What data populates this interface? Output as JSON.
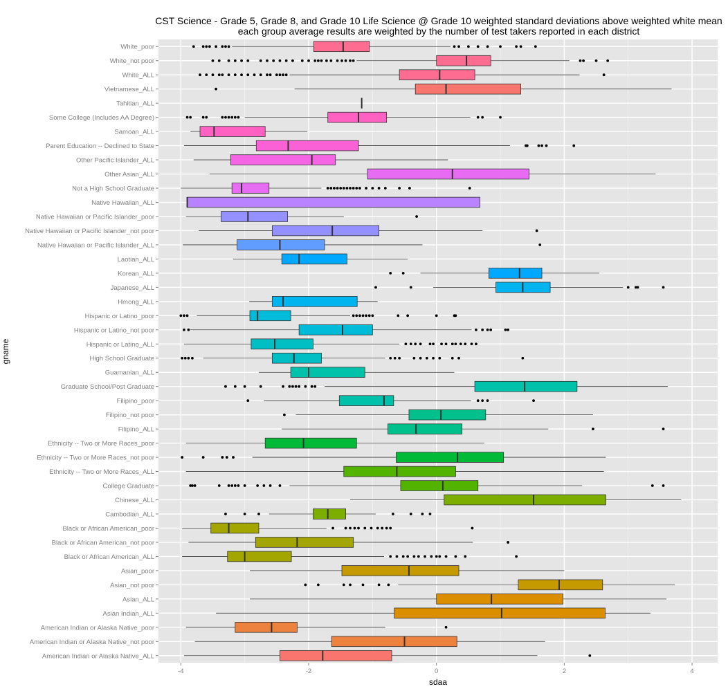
{
  "chart_data": {
    "type": "boxplot",
    "title": "CST Science - Grade 5, Grade 8, and Grade 10 Life Science @ Grade 10 weighted standard deviations above weighted white mean",
    "subtitle": "each group average results are weighted by the number of test takers reported in each district",
    "xlabel": "sdaa",
    "ylabel": "gname",
    "xlim": [
      -4.35,
      4.4
    ],
    "x_ticks": [
      -4,
      -2,
      0,
      2,
      4
    ],
    "x_tick_labels": [
      "-4",
      "-2",
      "0",
      "2",
      "4"
    ],
    "grid": true,
    "legend": "none",
    "categories": [
      "White_poor",
      "White_not poor",
      "White_ALL",
      "Vietnamese_ALL",
      "Tahitian_ALL",
      "Some College (Includes AA Degree)",
      "Samoan_ALL",
      "Parent Education -- Declined to State",
      "Other Pacific Islander_ALL",
      "Other Asian_ALL",
      "Not a High School Graduate",
      "Native Hawaiian_ALL",
      "Native Hawaiian or Pacific Islander_poor",
      "Native Hawaiian or Pacific Islander_not poor",
      "Native Hawaiian or Pacific Islander_ALL",
      "Laotian_ALL",
      "Korean_ALL",
      "Japanese_ALL",
      "Hmong_ALL",
      "Hispanic or Latino_poor",
      "Hispanic or Latino_not poor",
      "Hispanic or Latino_ALL",
      "High School Graduate",
      "Guamanian_ALL",
      "Graduate School/Post Graduate",
      "Filipino_poor",
      "Filipino_not poor",
      "Filipino_ALL",
      "Ethnicity -- Two or More Races_poor",
      "Ethnicity -- Two or More Races_not poor",
      "Ethnicity -- Two or More Races_ALL",
      "College Graduate",
      "Chinese_ALL",
      "Cambodian_ALL",
      "Black or African American_poor",
      "Black or African American_not poor",
      "Black or African American_ALL",
      "Asian_poor",
      "Asian_not poor",
      "Asian_ALL",
      "Asian Indian_ALL",
      "American Indian or Alaska Native_poor",
      "American Indian or Alaska Native_not poor",
      "American Indian or Alaska Native_ALL"
    ],
    "boxes": [
      {
        "fill": "#FF6C91",
        "whisker_low": -3.2,
        "q1": -1.92,
        "median": -1.46,
        "q3": -1.05,
        "whisker_high": 0.22,
        "outliers": [
          -3.8,
          -3.65,
          -3.6,
          -3.55,
          -3.45,
          -3.35,
          -3.3,
          -3.25,
          0.28,
          0.35,
          0.5,
          0.65,
          0.8,
          1.0,
          1.25,
          1.32,
          1.55
        ]
      },
      {
        "fill": "#FF6C91",
        "whisker_low": -1.25,
        "q1": 0.0,
        "median": 0.47,
        "q3": 0.85,
        "whisker_high": 2.08,
        "outliers": [
          -3.5,
          -3.4,
          -3.25,
          -3.15,
          -3.05,
          -2.95,
          -2.75,
          -2.65,
          -2.55,
          -2.45,
          -2.35,
          -2.25,
          -2.1,
          -2.0,
          -1.9,
          -1.85,
          -1.8,
          -1.72,
          -1.65,
          -1.55,
          -1.48,
          -1.42,
          -1.35,
          -1.3,
          2.25,
          2.3,
          2.5,
          2.68
        ]
      },
      {
        "fill": "#FF6C91",
        "whisker_low": -2.3,
        "q1": -0.58,
        "median": 0.05,
        "q3": 0.6,
        "whisker_high": 2.24,
        "outliers": [
          -3.7,
          -3.6,
          -3.5,
          -3.4,
          -3.35,
          -3.25,
          -3.15,
          -3.05,
          -2.95,
          -2.85,
          -2.75,
          -2.65,
          -2.6,
          -2.5,
          -2.45,
          -2.4,
          -2.35,
          2.62
        ]
      },
      {
        "fill": "#F8766D",
        "whisker_low": -2.22,
        "q1": -0.33,
        "median": 0.15,
        "q3": 1.32,
        "whisker_high": 3.68,
        "outliers": [
          -3.45
        ]
      },
      {
        "fill": "#F8766D",
        "whisker_low": -1.17,
        "q1": -1.17,
        "median": -1.17,
        "q3": -1.17,
        "whisker_high": -1.17,
        "outliers": []
      },
      {
        "fill": "#FF61C3",
        "whisker_low": -3.0,
        "q1": -1.7,
        "median": -1.22,
        "q3": -0.78,
        "whisker_high": 0.53,
        "outliers": [
          -3.9,
          -3.85,
          -3.65,
          -3.6,
          -3.35,
          -3.3,
          -3.25,
          -3.2,
          -3.15,
          -3.1,
          0.65,
          0.72,
          1.0
        ]
      },
      {
        "fill": "#FF61C3",
        "whisker_low": -3.85,
        "q1": -3.7,
        "median": -3.48,
        "q3": -2.68,
        "whisker_high": -2.02,
        "outliers": []
      },
      {
        "fill": "#FB61D7",
        "whisker_low": -3.95,
        "q1": -2.82,
        "median": -2.32,
        "q3": -1.22,
        "whisker_high": 1.15,
        "outliers": [
          1.4,
          1.42,
          1.6,
          1.65,
          1.72,
          2.15
        ]
      },
      {
        "fill": "#F564E3",
        "whisker_low": -3.8,
        "q1": -3.22,
        "median": -1.95,
        "q3": -1.58,
        "whisker_high": 0.18,
        "outliers": []
      },
      {
        "fill": "#E76BF3",
        "whisker_low": -3.55,
        "q1": -1.08,
        "median": 0.25,
        "q3": 1.45,
        "whisker_high": 3.43,
        "outliers": []
      },
      {
        "fill": "#E76BF3",
        "whisker_low": -4.0,
        "q1": -3.2,
        "median": -3.05,
        "q3": -2.62,
        "whisker_high": -1.8,
        "outliers": [
          -1.7,
          -1.65,
          -1.6,
          -1.55,
          -1.5,
          -1.45,
          -1.4,
          -1.35,
          -1.3,
          -1.25,
          -1.2,
          -1.1,
          -1.0,
          -0.9,
          -0.8,
          -0.58,
          -0.42,
          0.52
        ]
      },
      {
        "fill": "#B983FF",
        "whisker_low": -3.9,
        "q1": -3.9,
        "median": -3.9,
        "q3": 0.68,
        "whisker_high": 0.68,
        "outliers": []
      },
      {
        "fill": "#9590FF",
        "whisker_low": -3.92,
        "q1": -3.37,
        "median": -2.95,
        "q3": -2.33,
        "whisker_high": -1.45,
        "outliers": [
          -0.31
        ]
      },
      {
        "fill": "#9590FF",
        "whisker_low": -3.72,
        "q1": -2.57,
        "median": -1.63,
        "q3": -0.9,
        "whisker_high": 0.72,
        "outliers": [
          1.57
        ]
      },
      {
        "fill": "#619CFF",
        "whisker_low": -3.97,
        "q1": -3.12,
        "median": -2.45,
        "q3": -1.75,
        "whisker_high": -0.22,
        "outliers": [
          1.62
        ]
      },
      {
        "fill": "#00A9FF",
        "whisker_low": -3.18,
        "q1": -2.42,
        "median": -2.15,
        "q3": -1.4,
        "whisker_high": -0.45,
        "outliers": []
      },
      {
        "fill": "#00A9FF",
        "whisker_low": -0.25,
        "q1": 0.82,
        "median": 1.3,
        "q3": 1.65,
        "whisker_high": 2.55,
        "outliers": [
          -0.72,
          -0.52
        ]
      },
      {
        "fill": "#00B4F0",
        "whisker_low": -0.05,
        "q1": 0.93,
        "median": 1.35,
        "q3": 1.78,
        "whisker_high": 2.92,
        "outliers": [
          -0.95,
          -0.4,
          3.0,
          3.12,
          3.15,
          3.55
        ]
      },
      {
        "fill": "#00B4F0",
        "whisker_low": -2.93,
        "q1": -2.57,
        "median": -2.4,
        "q3": -1.24,
        "whisker_high": -0.92,
        "outliers": []
      },
      {
        "fill": "#00BCD8",
        "whisker_low": -3.75,
        "q1": -2.92,
        "median": -2.8,
        "q3": -2.28,
        "whisker_high": -1.35,
        "outliers": [
          -4.0,
          -3.95,
          -3.9,
          -1.3,
          -1.25,
          -1.2,
          -1.15,
          -1.1,
          -1.05,
          -1.0,
          -0.6,
          -0.45,
          0.0,
          0.28,
          0.3
        ]
      },
      {
        "fill": "#00BCD8",
        "whisker_low": -3.85,
        "q1": -2.15,
        "median": -1.47,
        "q3": -1.0,
        "whisker_high": 0.55,
        "outliers": [
          -3.95,
          -3.88,
          0.62,
          0.72,
          0.8,
          0.85,
          1.08,
          1.12
        ]
      },
      {
        "fill": "#00BFC4",
        "whisker_low": -3.95,
        "q1": -2.9,
        "median": -2.53,
        "q3": -1.93,
        "whisker_high": -0.58,
        "outliers": [
          -0.48,
          -0.4,
          -0.33,
          -0.25,
          -0.1,
          -0.05,
          0.08,
          0.15,
          0.25,
          0.3,
          0.38,
          0.45,
          0.55,
          0.62
        ]
      },
      {
        "fill": "#00BFC4",
        "whisker_low": -3.65,
        "q1": -2.57,
        "median": -2.23,
        "q3": -1.8,
        "whisker_high": -0.8,
        "outliers": [
          -3.98,
          -3.93,
          -3.88,
          -3.82,
          -0.72,
          -0.65,
          -0.58,
          -0.35,
          -0.25,
          -0.15,
          -0.05,
          0.05,
          0.25,
          0.35,
          1.35
        ]
      },
      {
        "fill": "#00C1AA",
        "whisker_low": -2.78,
        "q1": -2.28,
        "median": -2.0,
        "q3": -1.12,
        "whisker_high": 0.28,
        "outliers": []
      },
      {
        "fill": "#00C1AA",
        "whisker_low": -1.75,
        "q1": 0.6,
        "median": 1.38,
        "q3": 2.2,
        "whisker_high": 3.62,
        "outliers": [
          -3.3,
          -3.15,
          -3.0,
          -2.75,
          -2.4,
          -2.3,
          -2.25,
          -2.2,
          -2.15,
          -2.05,
          -1.95,
          -1.9
        ]
      },
      {
        "fill": "#00C1AA",
        "whisker_low": -2.7,
        "q1": -1.52,
        "median": -0.82,
        "q3": -0.67,
        "whisker_high": 0.54,
        "outliers": [
          -2.95,
          0.65,
          0.72,
          0.8,
          1.52
        ]
      },
      {
        "fill": "#00C08B",
        "whisker_low": -2.2,
        "q1": -0.43,
        "median": 0.07,
        "q3": 0.77,
        "whisker_high": 2.45,
        "outliers": [
          -2.38
        ]
      },
      {
        "fill": "#00C08B",
        "whisker_low": -2.42,
        "q1": -0.76,
        "median": -0.32,
        "q3": 0.4,
        "whisker_high": 1.75,
        "outliers": [
          2.45,
          3.55
        ]
      },
      {
        "fill": "#00BA38",
        "whisker_low": -3.92,
        "q1": -2.68,
        "median": -2.08,
        "q3": -1.25,
        "whisker_high": 0.75,
        "outliers": []
      },
      {
        "fill": "#00BA38",
        "whisker_low": -2.88,
        "q1": -0.63,
        "median": 0.33,
        "q3": 1.05,
        "whisker_high": 2.65,
        "outliers": [
          -3.98,
          -3.65,
          -3.35,
          -3.28,
          -3.18
        ]
      },
      {
        "fill": "#53B400",
        "whisker_low": -3.92,
        "q1": -1.45,
        "median": -0.62,
        "q3": 0.3,
        "whisker_high": 2.62,
        "outliers": []
      },
      {
        "fill": "#53B400",
        "whisker_low": -2.3,
        "q1": -0.56,
        "median": 0.1,
        "q3": 0.65,
        "whisker_high": 2.28,
        "outliers": [
          -3.85,
          -3.82,
          -3.78,
          -3.4,
          -3.25,
          -3.2,
          -3.15,
          -3.1,
          -3.0,
          -2.8,
          -2.7,
          -2.6,
          -2.45,
          3.38,
          3.55
        ]
      },
      {
        "fill": "#7CAE00",
        "whisker_low": -1.35,
        "q1": 0.12,
        "median": 1.52,
        "q3": 2.65,
        "whisker_high": 3.83,
        "outliers": []
      },
      {
        "fill": "#7CAE00",
        "whisker_low": -2.62,
        "q1": -1.93,
        "median": -1.7,
        "q3": -1.42,
        "whisker_high": -0.95,
        "outliers": [
          -3.3,
          -3.0,
          -2.78,
          -0.68,
          -0.4,
          -0.22,
          -0.1
        ]
      },
      {
        "fill": "#A3A500",
        "whisker_low": -3.98,
        "q1": -3.53,
        "median": -3.25,
        "q3": -2.78,
        "whisker_high": -1.72,
        "outliers": [
          -1.62,
          -1.42,
          -1.35,
          -1.28,
          -1.22,
          -1.12,
          -1.02,
          -0.92,
          -0.85,
          -0.78,
          -0.72,
          0.56
        ]
      },
      {
        "fill": "#A3A500",
        "whisker_low": -3.88,
        "q1": -2.83,
        "median": -2.18,
        "q3": -1.3,
        "whisker_high": 0.57,
        "outliers": [
          1.12
        ]
      },
      {
        "fill": "#A3A500",
        "whisker_low": -3.98,
        "q1": -3.27,
        "median": -3.0,
        "q3": -2.27,
        "whisker_high": -0.82,
        "outliers": [
          -0.72,
          -0.62,
          -0.52,
          -0.45,
          -0.35,
          -0.28,
          -0.18,
          -0.08,
          0.0,
          0.05,
          0.15,
          0.3,
          0.45,
          1.25
        ]
      },
      {
        "fill": "#C49A00",
        "whisker_low": -2.92,
        "q1": -1.48,
        "median": -0.43,
        "q3": 0.35,
        "whisker_high": 2.0,
        "outliers": []
      },
      {
        "fill": "#C49A00",
        "whisker_low": -0.6,
        "q1": 1.28,
        "median": 1.92,
        "q3": 2.6,
        "whisker_high": 3.73,
        "outliers": [
          -2.05,
          -1.85,
          -1.45,
          -1.35,
          -1.15,
          -0.9,
          -0.75
        ]
      },
      {
        "fill": "#DB8E00",
        "whisker_low": -2.92,
        "q1": 0.0,
        "median": 0.86,
        "q3": 1.98,
        "whisker_high": 3.6,
        "outliers": []
      },
      {
        "fill": "#DB8E00",
        "whisker_low": -3.45,
        "q1": -0.66,
        "median": 1.02,
        "q3": 2.64,
        "whisker_high": 3.35,
        "outliers": []
      },
      {
        "fill": "#ED813E",
        "whisker_low": -3.92,
        "q1": -3.15,
        "median": -2.58,
        "q3": -2.18,
        "whisker_high": -0.8,
        "outliers": [
          0.15
        ]
      },
      {
        "fill": "#ED813E",
        "whisker_low": -3.78,
        "q1": -1.64,
        "median": -0.5,
        "q3": 0.32,
        "whisker_high": 1.7,
        "outliers": []
      },
      {
        "fill": "#F8766D",
        "whisker_low": -3.95,
        "q1": -2.45,
        "median": -1.78,
        "q3": -0.7,
        "whisker_high": 1.58,
        "outliers": [
          2.4
        ]
      }
    ]
  }
}
